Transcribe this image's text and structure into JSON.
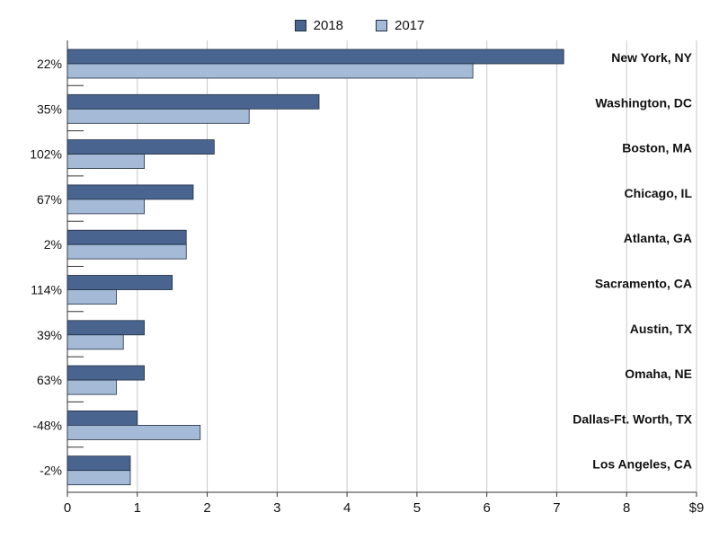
{
  "chart_data": {
    "type": "bar",
    "orientation": "horizontal",
    "categories": [
      "New York, NY",
      "Washington, DC",
      "Boston, MA",
      "Chicago, IL",
      "Atlanta, GA",
      "Sacramento, CA",
      "Austin, TX",
      "Omaha, NE",
      "Dallas-Ft. Worth, TX",
      "Los Angeles, CA"
    ],
    "change_labels": [
      "22%",
      "35%",
      "102%",
      "67%",
      "2%",
      "114%",
      "39%",
      "63%",
      "-48%",
      "-2%"
    ],
    "series": [
      {
        "name": "2018",
        "color": "#4a6490",
        "values": [
          7.1,
          3.6,
          2.1,
          1.8,
          1.7,
          1.5,
          1.1,
          1.1,
          1.0,
          0.9
        ]
      },
      {
        "name": "2017",
        "color": "#a4bad7",
        "values": [
          5.8,
          2.6,
          1.1,
          1.1,
          1.7,
          0.7,
          0.8,
          0.7,
          1.9,
          0.9
        ]
      }
    ],
    "xlim": [
      0,
      9
    ],
    "x_ticks": [
      "0",
      "1",
      "2",
      "3",
      "4",
      "5",
      "6",
      "7",
      "8",
      "$9"
    ],
    "grid": true,
    "legend_position": "top-center",
    "title": "",
    "xlabel": "",
    "ylabel": ""
  }
}
